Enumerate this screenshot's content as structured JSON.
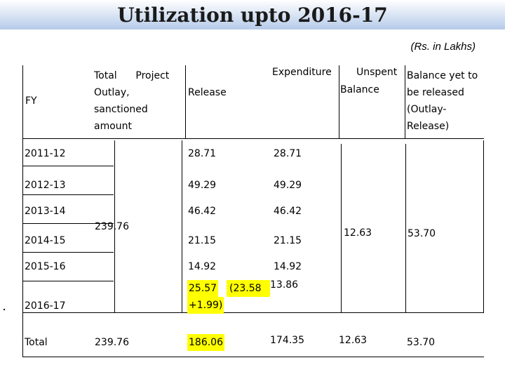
{
  "title": "Utilization upto 2016-17",
  "unit": "(Rs. in Lakhs)",
  "headers": {
    "fy": "FY",
    "outlay": [
      "Total      Project",
      "Outlay,",
      "sanctioned",
      "amount"
    ],
    "release": "Release",
    "expenditure": "Expenditure",
    "unspent": [
      "Unspent",
      "Balance"
    ],
    "balance": [
      "Balance yet to",
      "be released",
      "(Outlay-",
      "Release)"
    ]
  },
  "rows": [
    {
      "fy": "2011-12",
      "release": "28.71",
      "expenditure": "28.71"
    },
    {
      "fy": "2012-13",
      "release": "49.29",
      "expenditure": "49.29"
    },
    {
      "fy": "2013-14",
      "release": "46.42",
      "expenditure": "46.42"
    },
    {
      "fy": "2014-15",
      "release": "21.15",
      "expenditure": "21.15"
    },
    {
      "fy": "2015-16",
      "release": "14.92",
      "expenditure": "14.92"
    },
    {
      "fy": "2016-17",
      "release_line1": "25.57",
      "release_paren": "(23.58",
      "release_line2": "+1.99)",
      "expenditure": "13.86"
    }
  ],
  "merged": {
    "outlay": "239.76",
    "unspent": "12.63",
    "balance": "53.70"
  },
  "total": {
    "label": "Total",
    "outlay": "239.76",
    "release": "186.06",
    "expenditure": "174.35",
    "unspent": "12.63",
    "balance": "53.70"
  },
  "colors": {
    "highlight": "#ffff00",
    "title_band": "#b5c9e8"
  }
}
